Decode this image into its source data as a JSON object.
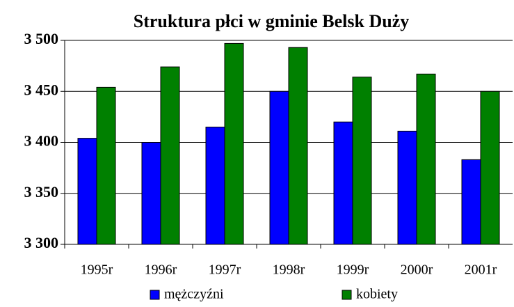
{
  "chart_data": {
    "type": "bar",
    "title": "Struktura płci w gminie Belsk Duży",
    "categories": [
      "1995r",
      "1996r",
      "1997r",
      "1998r",
      "1999r",
      "2000r",
      "2001r"
    ],
    "series": [
      {
        "name": "mężczyźni",
        "color": "#0000ff",
        "values": [
          3404,
          3400,
          3415,
          3450,
          3420,
          3411,
          3383
        ]
      },
      {
        "name": "kobiety",
        "color": "#008000",
        "values": [
          3454,
          3474,
          3497,
          3493,
          3464,
          3467,
          3450
        ]
      }
    ],
    "ylim": [
      3300,
      3500
    ],
    "yticks": [
      {
        "value": 3300,
        "label": "3 300"
      },
      {
        "value": 3350,
        "label": "3 350"
      },
      {
        "value": 3400,
        "label": "3 400"
      },
      {
        "value": 3450,
        "label": "3 450"
      },
      {
        "value": 3500,
        "label": "3 500"
      }
    ],
    "grid": true,
    "legend": "bottom"
  }
}
